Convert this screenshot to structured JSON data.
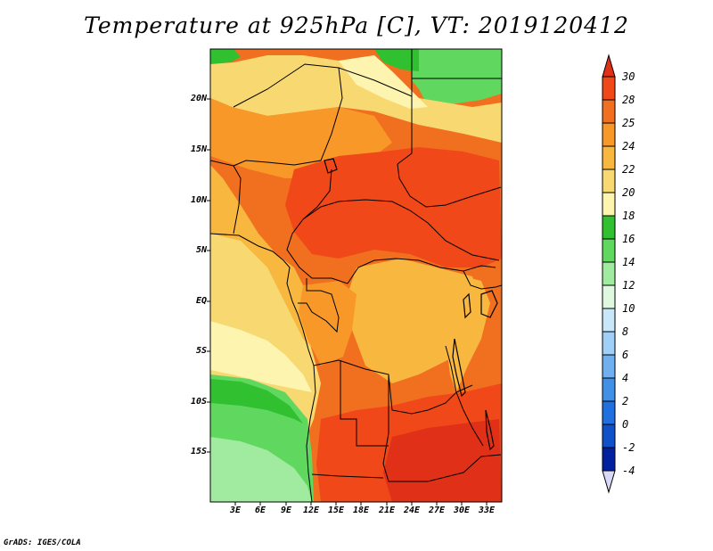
{
  "title": "Temperature at 925hPa [C], VT: 2019120412",
  "credit": "GrADS: IGES/COLA",
  "map": {
    "y_ticks": [
      "20N",
      "15N",
      "10N",
      "5N",
      "EQ",
      "5S",
      "10S",
      "15S"
    ],
    "x_ticks": [
      "3E",
      "6E",
      "9E",
      "12E",
      "15E",
      "18E",
      "21E",
      "24E",
      "27E",
      "30E",
      "33E"
    ]
  },
  "colorbar": {
    "labels": [
      "30",
      "28",
      "25",
      "24",
      "22",
      "20",
      "18",
      "16",
      "14",
      "12",
      "10",
      "8",
      "6",
      "4",
      "2",
      "0",
      "-2",
      "-4"
    ],
    "colors": {
      "above_30": "#e03018",
      "28_30": "#f04818",
      "25_28": "#f07020",
      "24_25": "#f89828",
      "22_24": "#f8b840",
      "20_22": "#f8d870",
      "18_20": "#fdf4b0",
      "16_18": "#30c030",
      "14_16": "#60d860",
      "12_14": "#a0eba0",
      "10_12": "#e0f8e0",
      "8_10": "#c8e8fa",
      "6_8": "#a0d0f8",
      "4_6": "#70b0f0",
      "2_4": "#4090e8",
      "0_2": "#2070e0",
      "m2_0": "#1050c8",
      "m4_m2": "#0020a0",
      "below_m4": "#000060"
    }
  }
}
